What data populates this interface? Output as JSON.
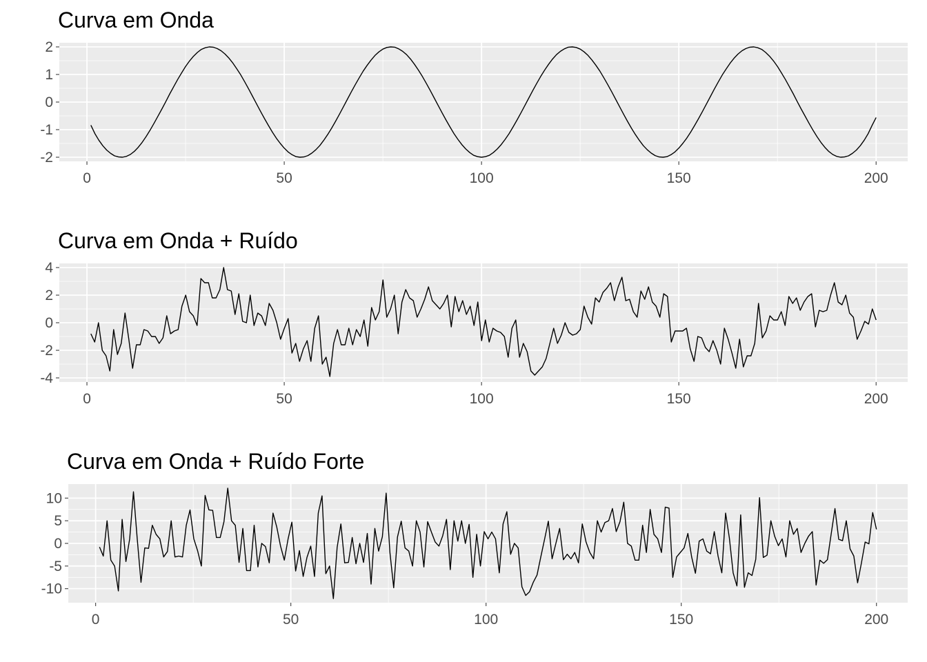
{
  "theme": {
    "panel_background": "#ebebeb",
    "grid_color": "#ffffff",
    "line_color": "#000000",
    "tick_color": "#4d4d4d"
  },
  "chart_data": [
    {
      "type": "line",
      "title": "Curva em Onda",
      "xlabel": "",
      "ylabel": "",
      "xlim": [
        -7,
        208
      ],
      "ylim": [
        -2.15,
        2.15
      ],
      "x_ticks": [
        0,
        50,
        100,
        150,
        200
      ],
      "y_ticks": [
        -2,
        -1,
        0,
        1,
        2
      ],
      "grid": true,
      "series": [
        {
          "x_start": 1,
          "x_end": 200,
          "values": [
            -0.84,
            -1.14,
            -1.38,
            -1.58,
            -1.74,
            -1.86,
            -1.95,
            -1.99,
            -2.0,
            -1.97,
            -1.9,
            -1.79,
            -1.64,
            -1.46,
            -1.25,
            -1.02,
            -0.77,
            -0.51,
            -0.25,
            0.02,
            0.3,
            0.56,
            0.82,
            1.06,
            1.29,
            1.49,
            1.66,
            1.8,
            1.91,
            1.97,
            2.0,
            1.99,
            1.94,
            1.86,
            1.74,
            1.59,
            1.41,
            1.2,
            0.98,
            0.73,
            0.47,
            0.2,
            -0.07,
            -0.34,
            -0.6,
            -0.85,
            -1.09,
            -1.31,
            -1.5,
            -1.67,
            -1.81,
            -1.91,
            -1.98,
            -2.0,
            -1.99,
            -1.94,
            -1.85,
            -1.73,
            -1.58,
            -1.39,
            -1.18,
            -0.95,
            -0.7,
            -0.44,
            -0.17,
            0.1,
            0.37,
            0.63,
            0.88,
            1.12,
            1.33,
            1.52,
            1.69,
            1.82,
            1.92,
            1.98,
            2.0,
            1.99,
            1.93,
            1.84,
            1.72,
            1.56,
            1.37,
            1.16,
            0.93,
            0.68,
            0.42,
            0.15,
            -0.12,
            -0.39,
            -0.65,
            -0.9,
            -1.14,
            -1.35,
            -1.54,
            -1.7,
            -1.83,
            -1.93,
            -1.98,
            -2.0,
            -1.98,
            -1.93,
            -1.83,
            -1.7,
            -1.54,
            -1.35,
            -1.14,
            -0.9,
            -0.65,
            -0.39,
            -0.12,
            0.15,
            0.42,
            0.68,
            0.93,
            1.16,
            1.37,
            1.56,
            1.72,
            1.84,
            1.93,
            1.99,
            2.0,
            1.98,
            1.92,
            1.82,
            1.69,
            1.52,
            1.33,
            1.12,
            0.88,
            0.63,
            0.37,
            0.1,
            -0.17,
            -0.44,
            -0.7,
            -0.95,
            -1.18,
            -1.39,
            -1.58,
            -1.73,
            -1.85,
            -1.94,
            -1.99,
            -2.0,
            -1.98,
            -1.91,
            -1.81,
            -1.67,
            -1.5,
            -1.31,
            -1.09,
            -0.85,
            -0.6,
            -0.34,
            -0.07,
            0.2,
            0.47,
            0.73,
            0.98,
            1.2,
            1.41,
            1.59,
            1.74,
            1.86,
            1.94,
            1.99,
            2.0,
            1.97,
            1.91,
            1.8,
            1.66,
            1.49,
            1.29,
            1.06,
            0.82,
            0.56,
            0.3,
            0.02,
            -0.25,
            -0.51,
            -0.77,
            -1.02,
            -1.25,
            -1.46,
            -1.64,
            -1.79,
            -1.9,
            -1.97,
            -2.0,
            -1.99,
            -1.95,
            -1.86,
            -1.74,
            -1.58,
            -1.38,
            -1.14,
            -0.84,
            -0.56
          ]
        }
      ]
    },
    {
      "type": "line",
      "title": "Curva em Onda  + Ruído",
      "xlabel": "",
      "ylabel": "",
      "xlim": [
        -7,
        208
      ],
      "ylim": [
        -4.3,
        4.3
      ],
      "x_ticks": [
        0,
        50,
        100,
        150,
        200
      ],
      "y_ticks": [
        -4,
        -2,
        0,
        2,
        4
      ],
      "grid": true,
      "series": [
        {
          "x_start": 1,
          "x_end": 200,
          "values": [
            -0.8,
            -1.4,
            0.0,
            -2.0,
            -2.4,
            -3.5,
            -0.5,
            -2.3,
            -1.5,
            0.7,
            -1.2,
            -3.3,
            -1.6,
            -1.6,
            -0.5,
            -0.6,
            -1.0,
            -1.0,
            -1.5,
            -1.1,
            0.5,
            -0.8,
            -0.6,
            -0.5,
            1.2,
            2.0,
            0.8,
            0.5,
            -0.2,
            3.2,
            2.9,
            2.9,
            1.8,
            1.8,
            2.4,
            4.0,
            2.4,
            2.3,
            0.6,
            2.1,
            0.1,
            0.0,
            2.0,
            -0.2,
            0.7,
            0.5,
            -0.2,
            1.4,
            0.9,
            0.0,
            -1.2,
            -0.4,
            0.3,
            -2.2,
            -1.5,
            -2.8,
            -1.9,
            -1.3,
            -2.8,
            -0.4,
            0.5,
            -3.0,
            -2.5,
            -3.9,
            -1.5,
            -0.5,
            -1.6,
            -1.6,
            -0.4,
            -1.6,
            -0.5,
            -1.0,
            0.2,
            -1.7,
            1.1,
            0.2,
            0.8,
            3.1,
            0.4,
            1.0,
            2.0,
            -0.8,
            1.5,
            2.4,
            1.8,
            1.6,
            0.4,
            1.0,
            1.7,
            2.6,
            1.6,
            1.3,
            1.0,
            1.4,
            2.0,
            -0.3,
            1.9,
            0.8,
            1.6,
            0.6,
            1.2,
            -0.2,
            1.5,
            -1.3,
            0.2,
            -1.4,
            -0.4,
            -0.6,
            -0.7,
            -1.0,
            -2.5,
            -0.4,
            0.2,
            -2.5,
            -1.5,
            -2.1,
            -3.5,
            -3.8,
            -3.5,
            -3.2,
            -2.6,
            -1.5,
            -0.4,
            -1.5,
            -0.9,
            0.0,
            -0.7,
            -0.9,
            -0.8,
            -0.5,
            1.2,
            0.4,
            -0.1,
            1.8,
            1.5,
            2.2,
            2.5,
            2.9,
            1.6,
            2.6,
            3.3,
            1.6,
            1.7,
            0.8,
            0.4,
            2.3,
            1.7,
            2.6,
            1.5,
            1.2,
            0.4,
            2.1,
            1.9,
            -1.4,
            -0.6,
            -0.6,
            -0.6,
            -0.4,
            -1.9,
            -2.8,
            -1.0,
            -1.1,
            -1.8,
            -2.1,
            -1.3,
            -2.0,
            -3.0,
            -0.4,
            -1.2,
            -2.2,
            -3.3,
            -1.2,
            -3.2,
            -2.4,
            -2.4,
            -1.5,
            1.4,
            -1.1,
            -0.6,
            0.5,
            0.2,
            0.2,
            0.8,
            -0.2,
            1.9,
            1.4,
            1.8,
            0.9,
            1.5,
            1.9,
            2.1,
            -0.3,
            0.9,
            0.8,
            0.9,
            2.0,
            2.9,
            1.5,
            1.3,
            2.0,
            0.7,
            0.4,
            -1.2,
            -0.6,
            0.1,
            -0.1,
            1.0,
            0.2
          ]
        }
      ]
    },
    {
      "type": "line",
      "title": "Curva em Onda + Ruído Forte",
      "xlabel": "",
      "ylabel": "",
      "xlim": [
        -7,
        208
      ],
      "ylim": [
        -13.1,
        13.1
      ],
      "x_ticks": [
        0,
        50,
        100,
        150,
        200
      ],
      "y_ticks": [
        -10,
        -5,
        0,
        5,
        10
      ],
      "grid": true,
      "series": [
        {
          "x_start": 1,
          "x_end": 200,
          "values": [
            -0.8,
            -2.8,
            5.0,
            -3.7,
            -5.0,
            -10.5,
            5.3,
            -4.0,
            1.0,
            11.4,
            1.0,
            -8.6,
            -1.0,
            -1.1,
            4.0,
            2.0,
            1.0,
            -3.0,
            -1.8,
            5.0,
            -3.0,
            -2.8,
            -3.0,
            4.0,
            7.4,
            1.0,
            -1.6,
            -5.0,
            10.6,
            7.4,
            7.3,
            1.3,
            1.3,
            4.8,
            12.2,
            5.0,
            4.0,
            -4.2,
            3.3,
            -6.0,
            -6.0,
            4.0,
            -5.2,
            0.0,
            -0.7,
            -4.3,
            6.7,
            3.6,
            -0.6,
            -3.7,
            1.0,
            4.7,
            -6.1,
            -1.6,
            -7.3,
            -3.1,
            -0.6,
            -7.3,
            6.7,
            10.5,
            -6.7,
            -5.0,
            -12.2,
            -0.9,
            4.3,
            -4.3,
            -4.2,
            1.3,
            -4.5,
            0.0,
            -4.2,
            2.2,
            -9.0,
            3.3,
            -1.7,
            1.5,
            11.1,
            -2.0,
            -9.8,
            1.4,
            4.9,
            -1.0,
            -1.7,
            -5.0,
            5.0,
            2.5,
            -5.2,
            4.8,
            2.5,
            0.3,
            -0.6,
            1.7,
            5.3,
            -5.8,
            5.0,
            0.5,
            5.0,
            0.0,
            4.2,
            -7.5,
            2.0,
            -5.0,
            2.6,
            1.0,
            2.5,
            1.0,
            -6.5,
            4.3,
            7.0,
            -2.4,
            0.0,
            -1.0,
            -9.6,
            -11.5,
            -10.7,
            -8.6,
            -7.0,
            -3.0,
            0.9,
            4.9,
            -3.4,
            0.0,
            3.3,
            -3.6,
            -2.4,
            -3.4,
            -2.0,
            -4.3,
            4.3,
            0.3,
            -2.0,
            -3.4,
            5.0,
            2.5,
            4.6,
            5.0,
            7.7,
            2.6,
            4.8,
            9.1,
            0.0,
            -0.6,
            -3.7,
            -3.7,
            4.0,
            -2.0,
            7.5,
            2.0,
            1.0,
            -2.0,
            8.0,
            7.8,
            -7.5,
            -3.0,
            -2.0,
            -1.0,
            2.2,
            -3.0,
            -6.6,
            0.5,
            1.0,
            -1.7,
            -2.3,
            2.6,
            -2.8,
            -6.5,
            6.7,
            1.2,
            -6.5,
            -9.4,
            6.3,
            -9.7,
            -6.5,
            -7.1,
            -3.5,
            10.1,
            -3.1,
            -2.6,
            5.0,
            1.6,
            -0.5,
            1.0,
            -3.0,
            5.0,
            2.0,
            3.3,
            -2.0,
            0.0,
            1.6,
            2.6,
            -9.2,
            -3.7,
            -4.4,
            -3.6,
            2.1,
            7.7,
            0.9,
            0.6,
            5.0,
            -1.2,
            -2.8,
            -8.7,
            -4.4,
            0.3,
            -0.1,
            6.8,
            3.1
          ]
        }
      ]
    }
  ]
}
